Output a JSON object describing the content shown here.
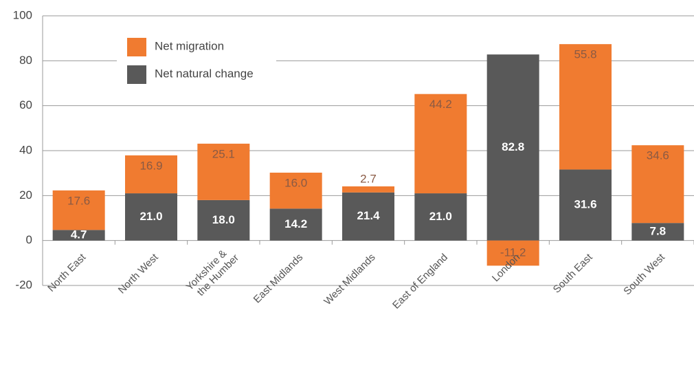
{
  "chart_data": {
    "type": "stacked-bar",
    "categories": [
      "North East",
      "North West",
      "Yorkshire &\nthe Humber",
      "East Midlands",
      "West Midlands",
      "East of England",
      "London",
      "South East",
      "South West"
    ],
    "series": [
      {
        "name": "Net natural change",
        "color": "#595959",
        "values": [
          4.7,
          21.0,
          18.0,
          14.2,
          21.4,
          21.0,
          82.8,
          31.6,
          7.8
        ],
        "value_labels": [
          "4.7",
          "21.0",
          "18.0",
          "14.2",
          "21.4",
          "21.0",
          "82.8",
          "31.6",
          "7.8"
        ]
      },
      {
        "name": "Net migration",
        "color": "#f07b30",
        "values": [
          17.6,
          16.9,
          25.1,
          16.0,
          2.7,
          44.2,
          -11.2,
          55.8,
          34.6
        ],
        "value_labels": [
          "17.6",
          "16.9",
          "25.1",
          "16.0",
          "2.7",
          "44.2",
          "-11.2",
          "55.8",
          "34.6"
        ]
      }
    ],
    "ylim": [
      -20,
      100
    ],
    "yticks": [
      -20,
      0,
      20,
      40,
      60,
      80,
      100
    ],
    "grid": true,
    "legend": "top-left"
  }
}
